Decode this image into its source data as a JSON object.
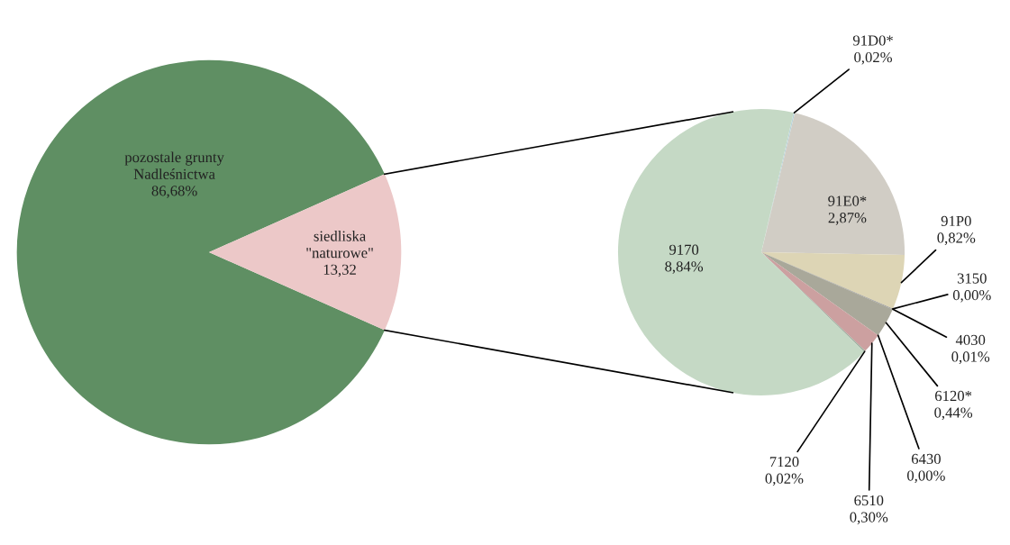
{
  "chart_data": [
    {
      "type": "pie",
      "categories": [
        "pozostale grunty\nNadleśnictwa",
        "siedliska\n\"naturowe\""
      ],
      "values": [
        86.68,
        13.32
      ],
      "colors": [
        "#5f8f63",
        "#ecc8c8"
      ],
      "value_labels": [
        "86,68%",
        "13,32"
      ]
    },
    {
      "type": "pie",
      "categories": [
        "91D0*",
        "91E0*",
        "91P0",
        "3150",
        "4030",
        "6120*",
        "6430",
        "6510",
        "7120",
        "9170"
      ],
      "values": [
        0.02,
        2.87,
        0.82,
        0.0,
        0.01,
        0.44,
        0.0,
        0.3,
        0.02,
        8.84
      ],
      "colors": [
        "#b8d4dc",
        "#d1cdc5",
        "#ddd5b5",
        "#b0b6c4",
        "#8f8f8f",
        "#a9a89a",
        "#c9b28a",
        "#cca0a0",
        "#9fb0a0",
        "#c5d9c5"
      ],
      "value_labels": [
        "0,02%",
        "2,87%",
        "0,82%",
        "0,00%",
        "0,01%",
        "0,44%",
        "0,00%",
        "0,30%",
        "0,02%",
        "8,84%"
      ]
    }
  ]
}
